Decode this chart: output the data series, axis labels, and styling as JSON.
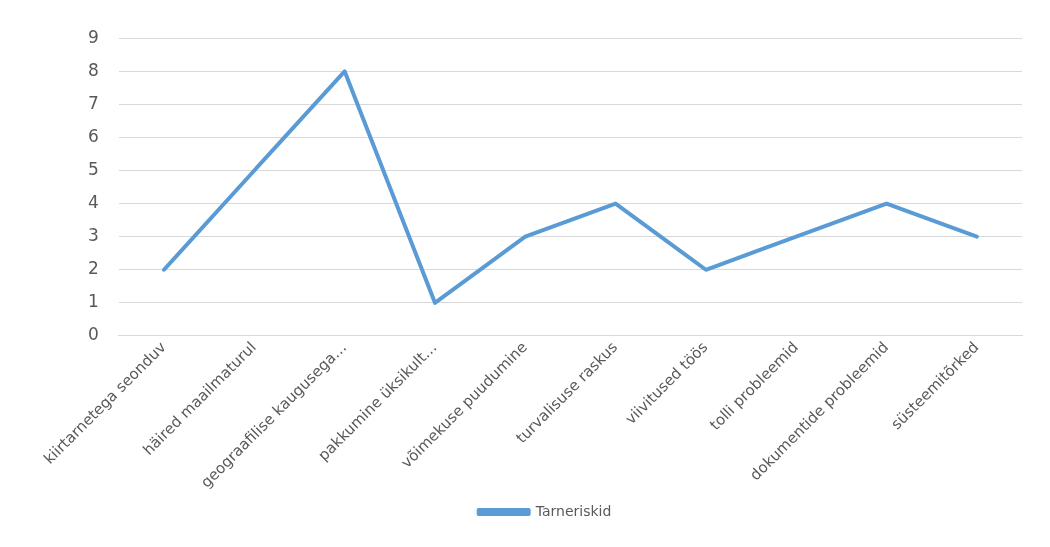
{
  "chart_data": {
    "type": "line",
    "categories": [
      "kiirtarnetega seonduv",
      "häired maailmaturul",
      "geograafilise kaugusega…",
      "pakkumine üksikult…",
      "võimekuse puudumine",
      "turvalisuse raskus",
      "viivitused töös",
      "tolli probleemid",
      "dokumentide probleemid",
      "süsteemitõrked"
    ],
    "series": [
      {
        "name": "Tarneriskid",
        "color": "#5b9bd5",
        "values": [
          2,
          5,
          8,
          1,
          3,
          4,
          2,
          3,
          4,
          3
        ]
      }
    ],
    "ylim": [
      0,
      9
    ],
    "yticks": [
      0,
      1,
      2,
      3,
      4,
      5,
      6,
      7,
      8,
      9
    ],
    "grid": "y",
    "legend": "bottom",
    "marker": "none",
    "line_style": "solid"
  }
}
